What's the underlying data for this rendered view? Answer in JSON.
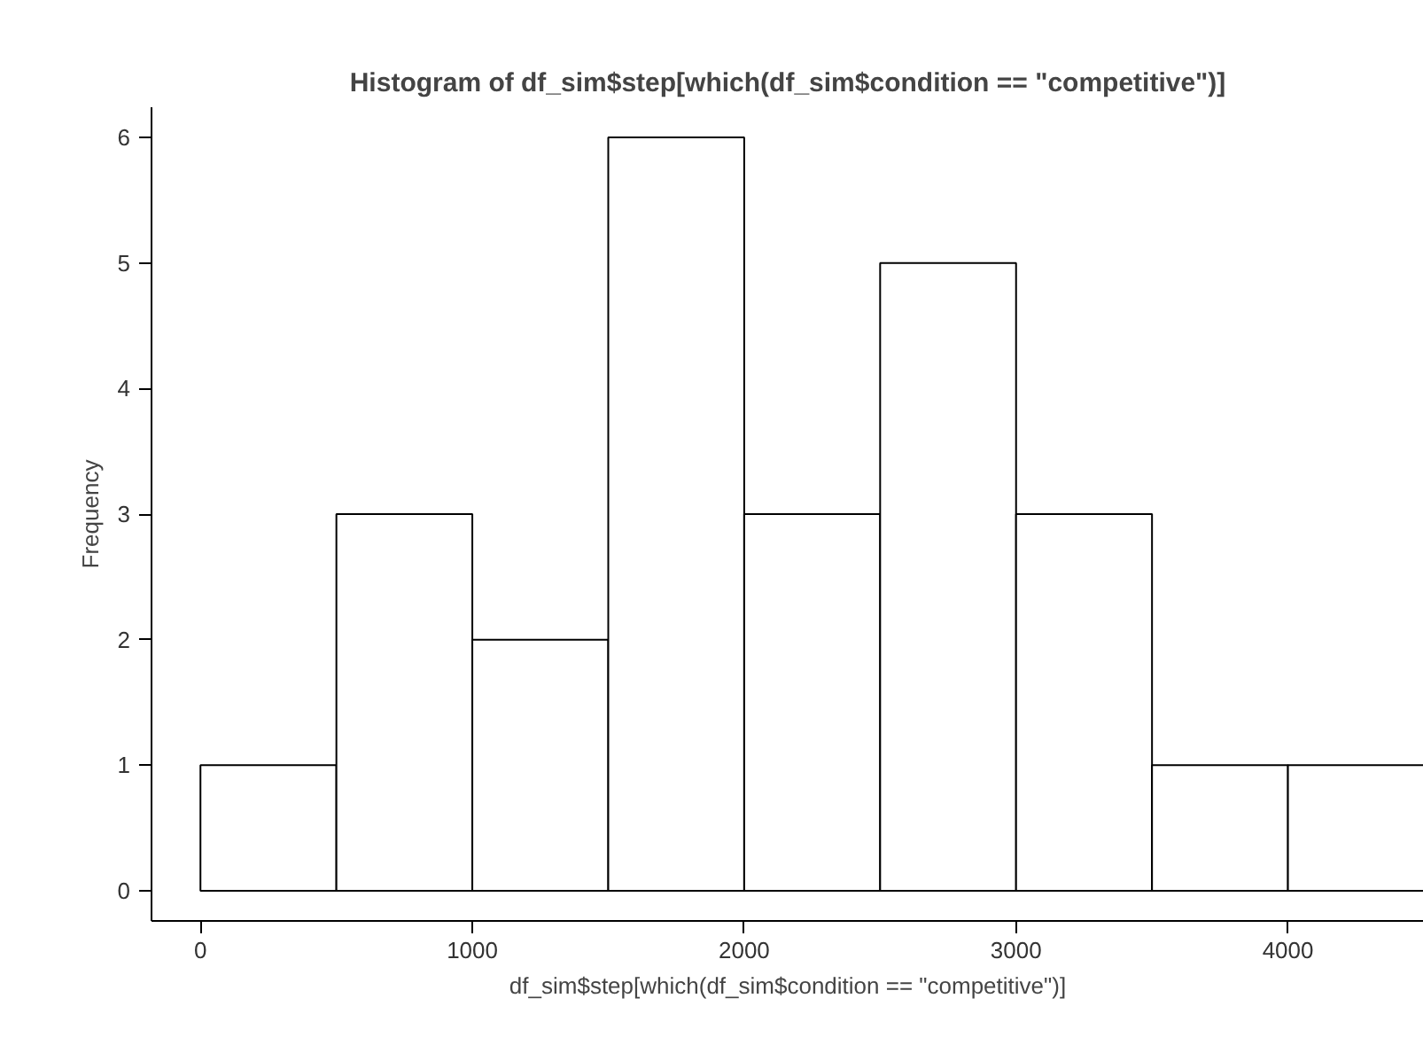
{
  "chart_data": {
    "type": "histogram",
    "title": "Histogram of df_sim$step[which(df_sim$condition == \"competitive\")]",
    "xlabel": "df_sim$step[which(df_sim$condition == \"competitive\")]",
    "ylabel": "Frequency",
    "bins": [
      0,
      500,
      1000,
      1500,
      2000,
      2500,
      3000,
      3500,
      4000,
      4500
    ],
    "values": [
      1,
      3,
      2,
      6,
      3,
      5,
      3,
      1,
      1
    ],
    "color": "#ffffff",
    "xlim": [
      -180,
      4500
    ],
    "ylim": [
      -0.24,
      6.24
    ],
    "xticks": [
      0,
      1000,
      2000,
      3000,
      4000
    ],
    "yticks": [
      0,
      1,
      2,
      3,
      4,
      5,
      6
    ],
    "grid": false
  }
}
